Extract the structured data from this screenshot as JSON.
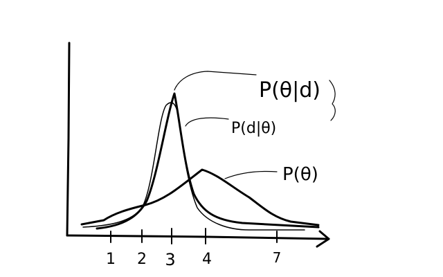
{
  "axis": {
    "tick_labels": [
      "1",
      "2",
      "3",
      "4",
      "7"
    ]
  },
  "curves": [
    {
      "label": "P(θ|d)"
    },
    {
      "label": "P(d|θ)"
    },
    {
      "label": "P(θ)"
    }
  ]
}
